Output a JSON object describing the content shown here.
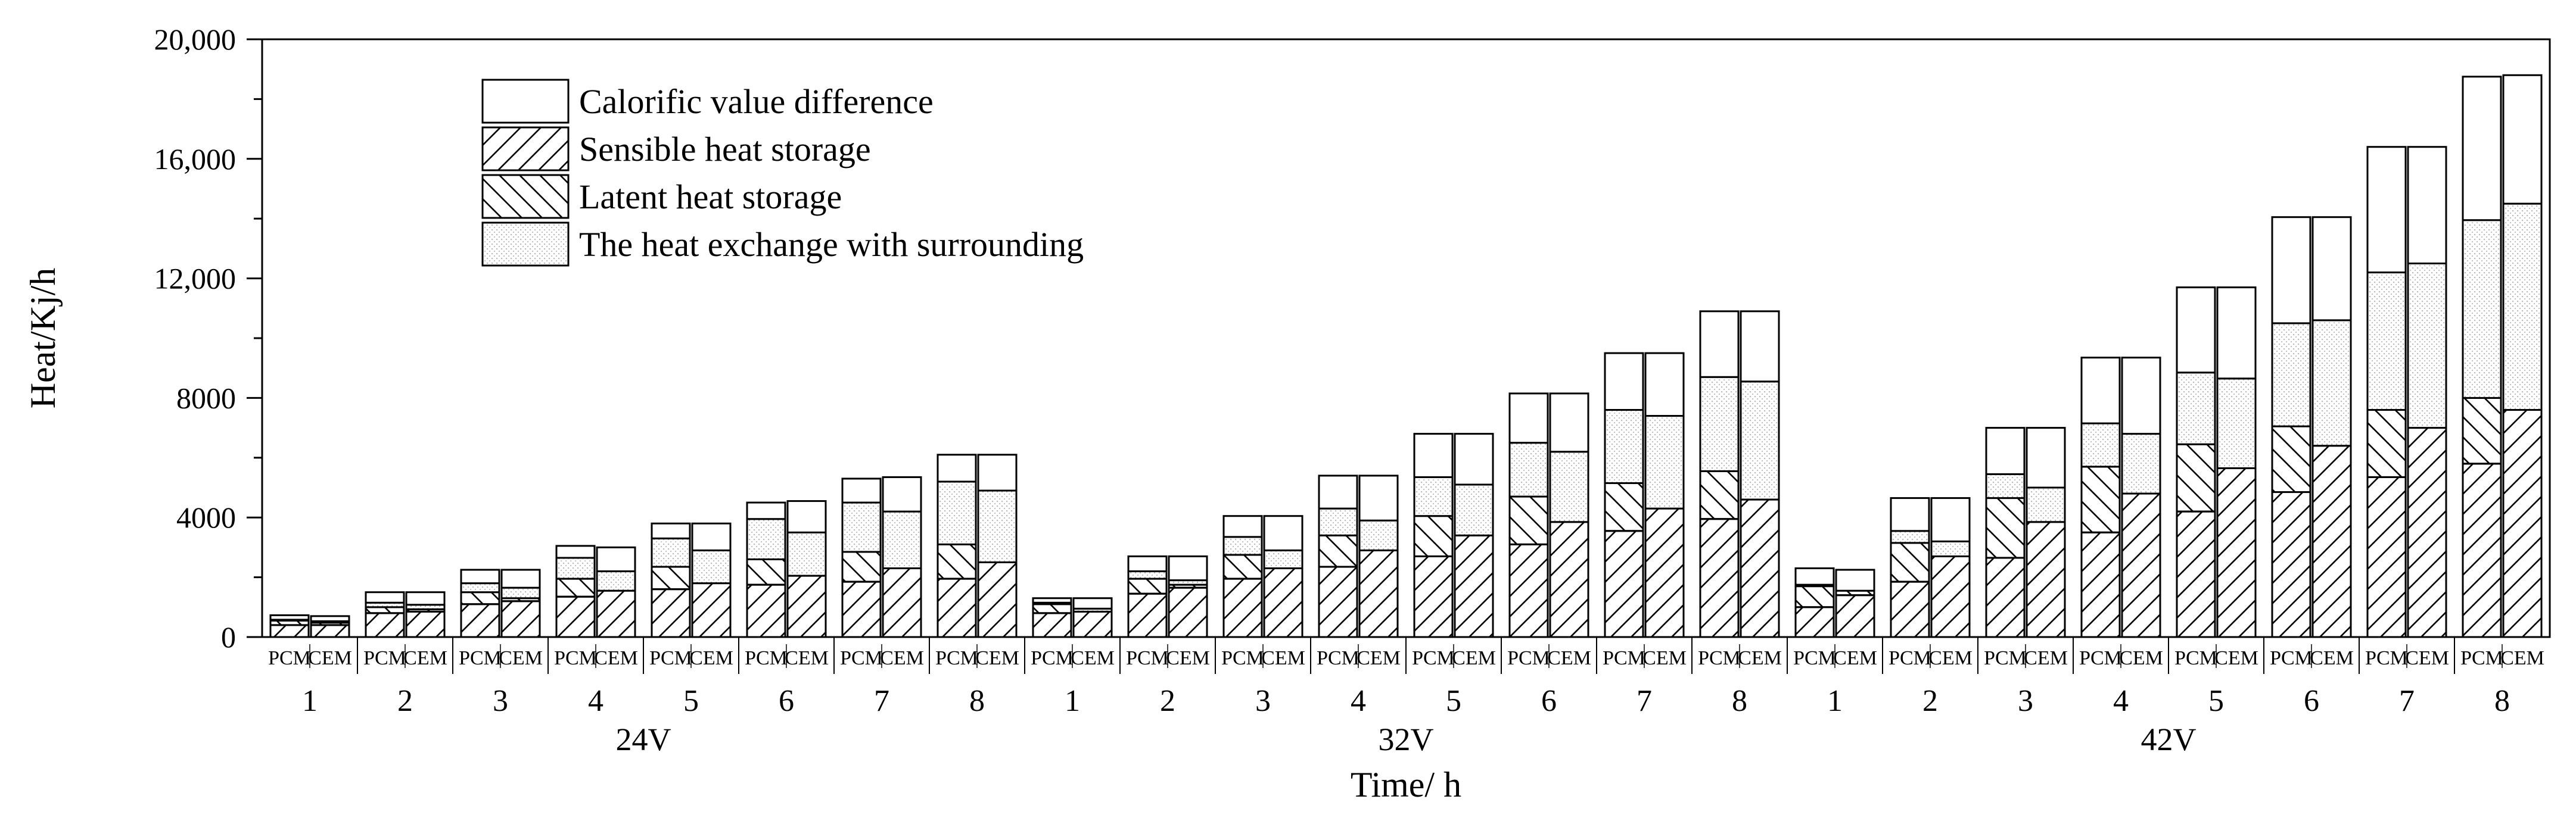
{
  "chart_data": {
    "type": "bar",
    "stacked": true,
    "ylabel": "Heat/Kj/h",
    "xlabel": "Time/ h",
    "ylim": [
      0,
      20000
    ],
    "ytick_values": [
      0,
      4000,
      8000,
      12000,
      16000,
      20000
    ],
    "ytick_labels": [
      "0",
      "4000",
      "8000",
      "12,000",
      "16,000",
      "20,000"
    ],
    "legend_position": "top-left",
    "components": [
      {
        "key": "sensible",
        "name": "Sensible heat storage",
        "pattern": "hatch-forward"
      },
      {
        "key": "latent",
        "name": "Latent heat storage",
        "pattern": "hatch-back"
      },
      {
        "key": "exchange",
        "name": "The heat exchange with surrounding",
        "pattern": "dotted"
      },
      {
        "key": "diff",
        "name": "Calorific value difference",
        "pattern": "blank"
      }
    ],
    "legend_order": [
      "diff",
      "sensible",
      "latent",
      "exchange"
    ],
    "bar_labels": [
      "PCM",
      "CEM"
    ],
    "hours": [
      "1",
      "2",
      "3",
      "4",
      "5",
      "6",
      "7",
      "8"
    ],
    "groups": [
      {
        "voltage": "24V",
        "pcm": [
          {
            "sensible": 400,
            "latent": 150,
            "exchange": 30,
            "diff": 150
          },
          {
            "sensible": 800,
            "latent": 200,
            "exchange": 150,
            "diff": 350
          },
          {
            "sensible": 1100,
            "latent": 400,
            "exchange": 300,
            "diff": 450
          },
          {
            "sensible": 1350,
            "latent": 600,
            "exchange": 700,
            "diff": 400
          },
          {
            "sensible": 1600,
            "latent": 750,
            "exchange": 950,
            "diff": 500
          },
          {
            "sensible": 1750,
            "latent": 850,
            "exchange": 1350,
            "diff": 550
          },
          {
            "sensible": 1850,
            "latent": 1000,
            "exchange": 1650,
            "diff": 800
          },
          {
            "sensible": 1950,
            "latent": 1150,
            "exchange": 2100,
            "diff": 900
          }
        ],
        "cem": [
          {
            "sensible": 400,
            "latent": 80,
            "exchange": 50,
            "diff": 170
          },
          {
            "sensible": 850,
            "latent": 80,
            "exchange": 150,
            "diff": 420
          },
          {
            "sensible": 1200,
            "latent": 100,
            "exchange": 350,
            "diff": 600
          },
          {
            "sensible": 1550,
            "latent": 0,
            "exchange": 650,
            "diff": 800
          },
          {
            "sensible": 1800,
            "latent": 0,
            "exchange": 1100,
            "diff": 900
          },
          {
            "sensible": 2050,
            "latent": 0,
            "exchange": 1450,
            "diff": 1050
          },
          {
            "sensible": 2300,
            "latent": 0,
            "exchange": 1900,
            "diff": 1150
          },
          {
            "sensible": 2500,
            "latent": 0,
            "exchange": 2400,
            "diff": 1200
          }
        ]
      },
      {
        "voltage": "32V",
        "pcm": [
          {
            "sensible": 800,
            "latent": 300,
            "exchange": 50,
            "diff": 150
          },
          {
            "sensible": 1450,
            "latent": 500,
            "exchange": 250,
            "diff": 500
          },
          {
            "sensible": 1950,
            "latent": 800,
            "exchange": 600,
            "diff": 700
          },
          {
            "sensible": 2350,
            "latent": 1050,
            "exchange": 900,
            "diff": 1100
          },
          {
            "sensible": 2700,
            "latent": 1350,
            "exchange": 1300,
            "diff": 1450
          },
          {
            "sensible": 3100,
            "latent": 1600,
            "exchange": 1800,
            "diff": 1650
          },
          {
            "sensible": 3550,
            "latent": 1600,
            "exchange": 2450,
            "diff": 1900
          },
          {
            "sensible": 3950,
            "latent": 1600,
            "exchange": 3150,
            "diff": 2200
          }
        ],
        "cem": [
          {
            "sensible": 850,
            "latent": 0,
            "exchange": 100,
            "diff": 350
          },
          {
            "sensible": 1650,
            "latent": 100,
            "exchange": 150,
            "diff": 800
          },
          {
            "sensible": 2300,
            "latent": 0,
            "exchange": 600,
            "diff": 1150
          },
          {
            "sensible": 2900,
            "latent": 0,
            "exchange": 1000,
            "diff": 1500
          },
          {
            "sensible": 3400,
            "latent": 0,
            "exchange": 1700,
            "diff": 1700
          },
          {
            "sensible": 3850,
            "latent": 0,
            "exchange": 2350,
            "diff": 1950
          },
          {
            "sensible": 4300,
            "latent": 0,
            "exchange": 3100,
            "diff": 2100
          },
          {
            "sensible": 4600,
            "latent": 0,
            "exchange": 3950,
            "diff": 2350
          }
        ]
      },
      {
        "voltage": "42V",
        "pcm": [
          {
            "sensible": 1000,
            "latent": 700,
            "exchange": 50,
            "diff": 550
          },
          {
            "sensible": 1850,
            "latent": 1300,
            "exchange": 400,
            "diff": 1100
          },
          {
            "sensible": 2650,
            "latent": 2000,
            "exchange": 800,
            "diff": 1550
          },
          {
            "sensible": 3500,
            "latent": 2200,
            "exchange": 1450,
            "diff": 2200
          },
          {
            "sensible": 4200,
            "latent": 2250,
            "exchange": 2400,
            "diff": 2850
          },
          {
            "sensible": 4850,
            "latent": 2200,
            "exchange": 3450,
            "diff": 3550
          },
          {
            "sensible": 5350,
            "latent": 2250,
            "exchange": 4600,
            "diff": 4200
          },
          {
            "sensible": 5800,
            "latent": 2200,
            "exchange": 5950,
            "diff": 4800
          }
        ],
        "cem": [
          {
            "sensible": 1400,
            "latent": 150,
            "exchange": 0,
            "diff": 700
          },
          {
            "sensible": 2700,
            "latent": 0,
            "exchange": 500,
            "diff": 1450
          },
          {
            "sensible": 3850,
            "latent": 0,
            "exchange": 1150,
            "diff": 2000
          },
          {
            "sensible": 4800,
            "latent": 0,
            "exchange": 2000,
            "diff": 2550
          },
          {
            "sensible": 5650,
            "latent": 0,
            "exchange": 3000,
            "diff": 3050
          },
          {
            "sensible": 6400,
            "latent": 0,
            "exchange": 4200,
            "diff": 3450
          },
          {
            "sensible": 7000,
            "latent": 0,
            "exchange": 5500,
            "diff": 3900
          },
          {
            "sensible": 7600,
            "latent": 0,
            "exchange": 6900,
            "diff": 4300
          }
        ]
      }
    ]
  }
}
